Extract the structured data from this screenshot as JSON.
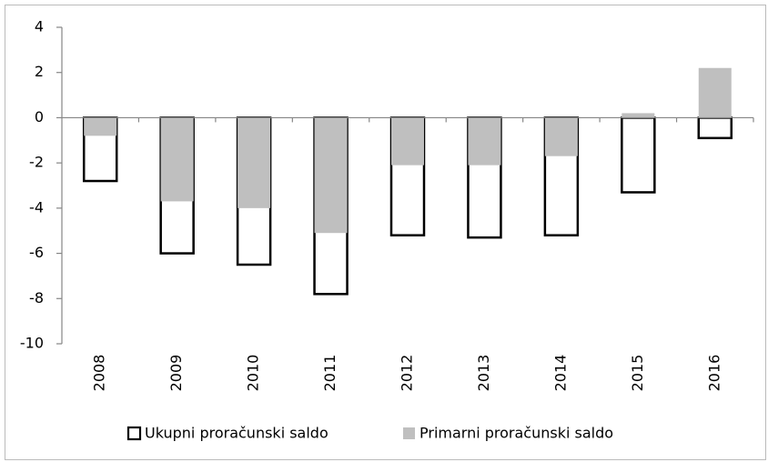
{
  "chart_data": {
    "type": "bar",
    "categories": [
      "2008",
      "2009",
      "2010",
      "2011",
      "2012",
      "2013",
      "2014",
      "2015",
      "2016"
    ],
    "series": [
      {
        "name": "Ukupni proračunski saldo",
        "color": "#ffffff",
        "values": [
          -2.8,
          -6.0,
          -6.5,
          -7.8,
          -5.2,
          -5.3,
          -5.2,
          -3.3,
          -0.9
        ]
      },
      {
        "name": "Primarni proračunski saldo",
        "color": "#bfbfbf",
        "values": [
          -0.8,
          -3.7,
          -4.0,
          -5.1,
          -2.1,
          -2.1,
          -1.7,
          0.2,
          2.2
        ]
      }
    ],
    "ylim": [
      -10,
      4
    ],
    "yticks": [
      -10,
      -8,
      -6,
      -4,
      -2,
      0,
      2,
      4
    ],
    "legend": "bottom",
    "grid": false
  }
}
